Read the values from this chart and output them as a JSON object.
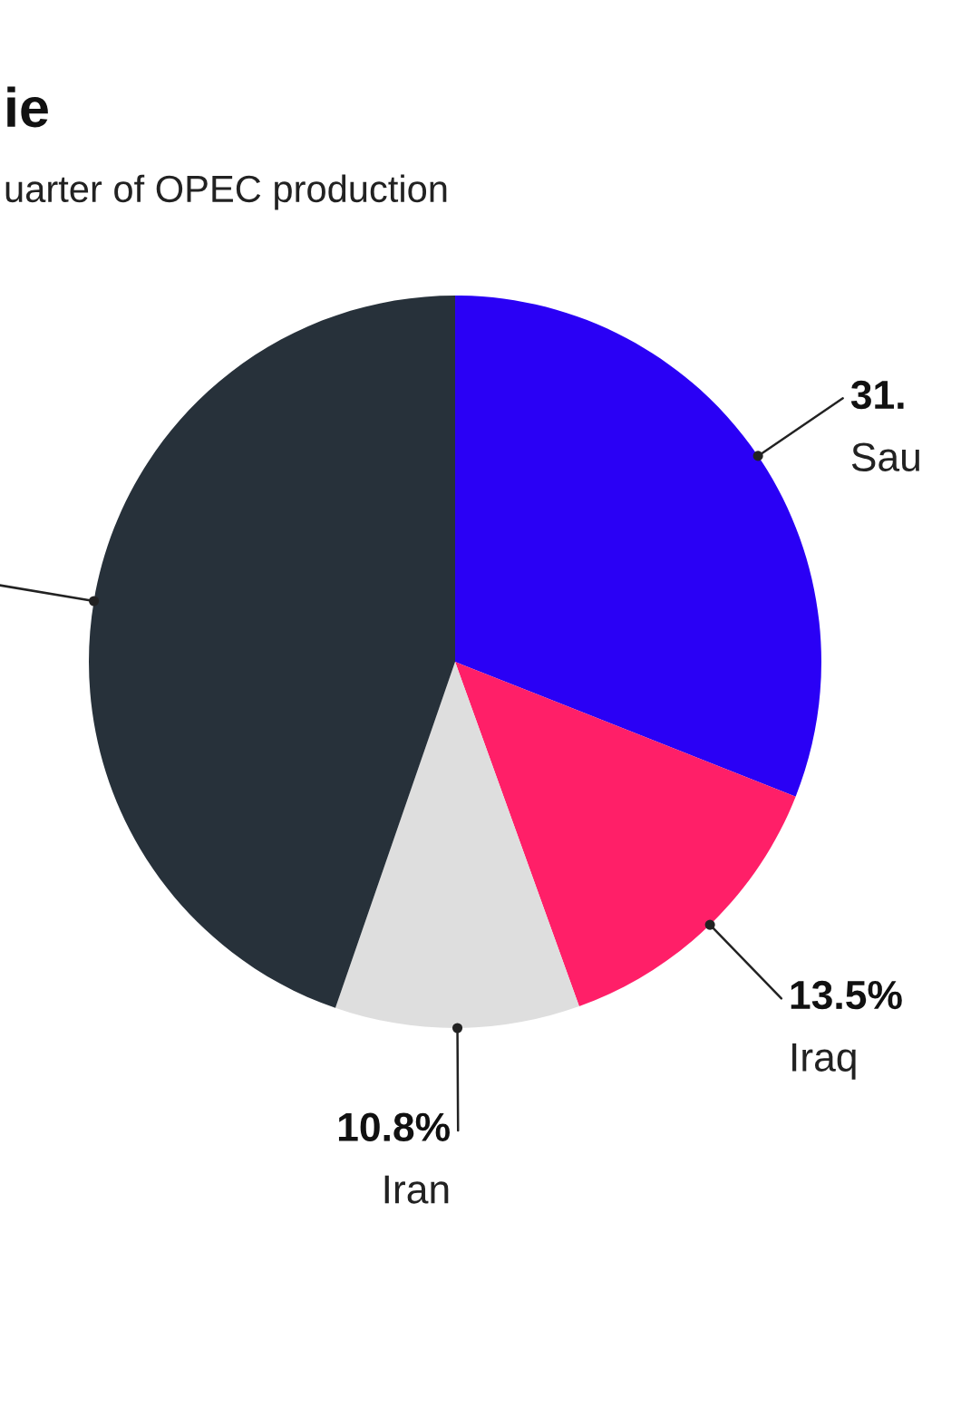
{
  "chart_data": {
    "type": "pie",
    "title": "ie",
    "subtitle": "uarter of OPEC production",
    "categories": [
      "Sau",
      "Iraq",
      "Iran",
      null
    ],
    "values": [
      31.0,
      13.5,
      10.8,
      44.7
    ],
    "value_labels": [
      "31.",
      "13.5%",
      "10.8%",
      null
    ],
    "colors": [
      "#2a00f5",
      "#ff1f68",
      "#dedede",
      "#27313a"
    ]
  }
}
